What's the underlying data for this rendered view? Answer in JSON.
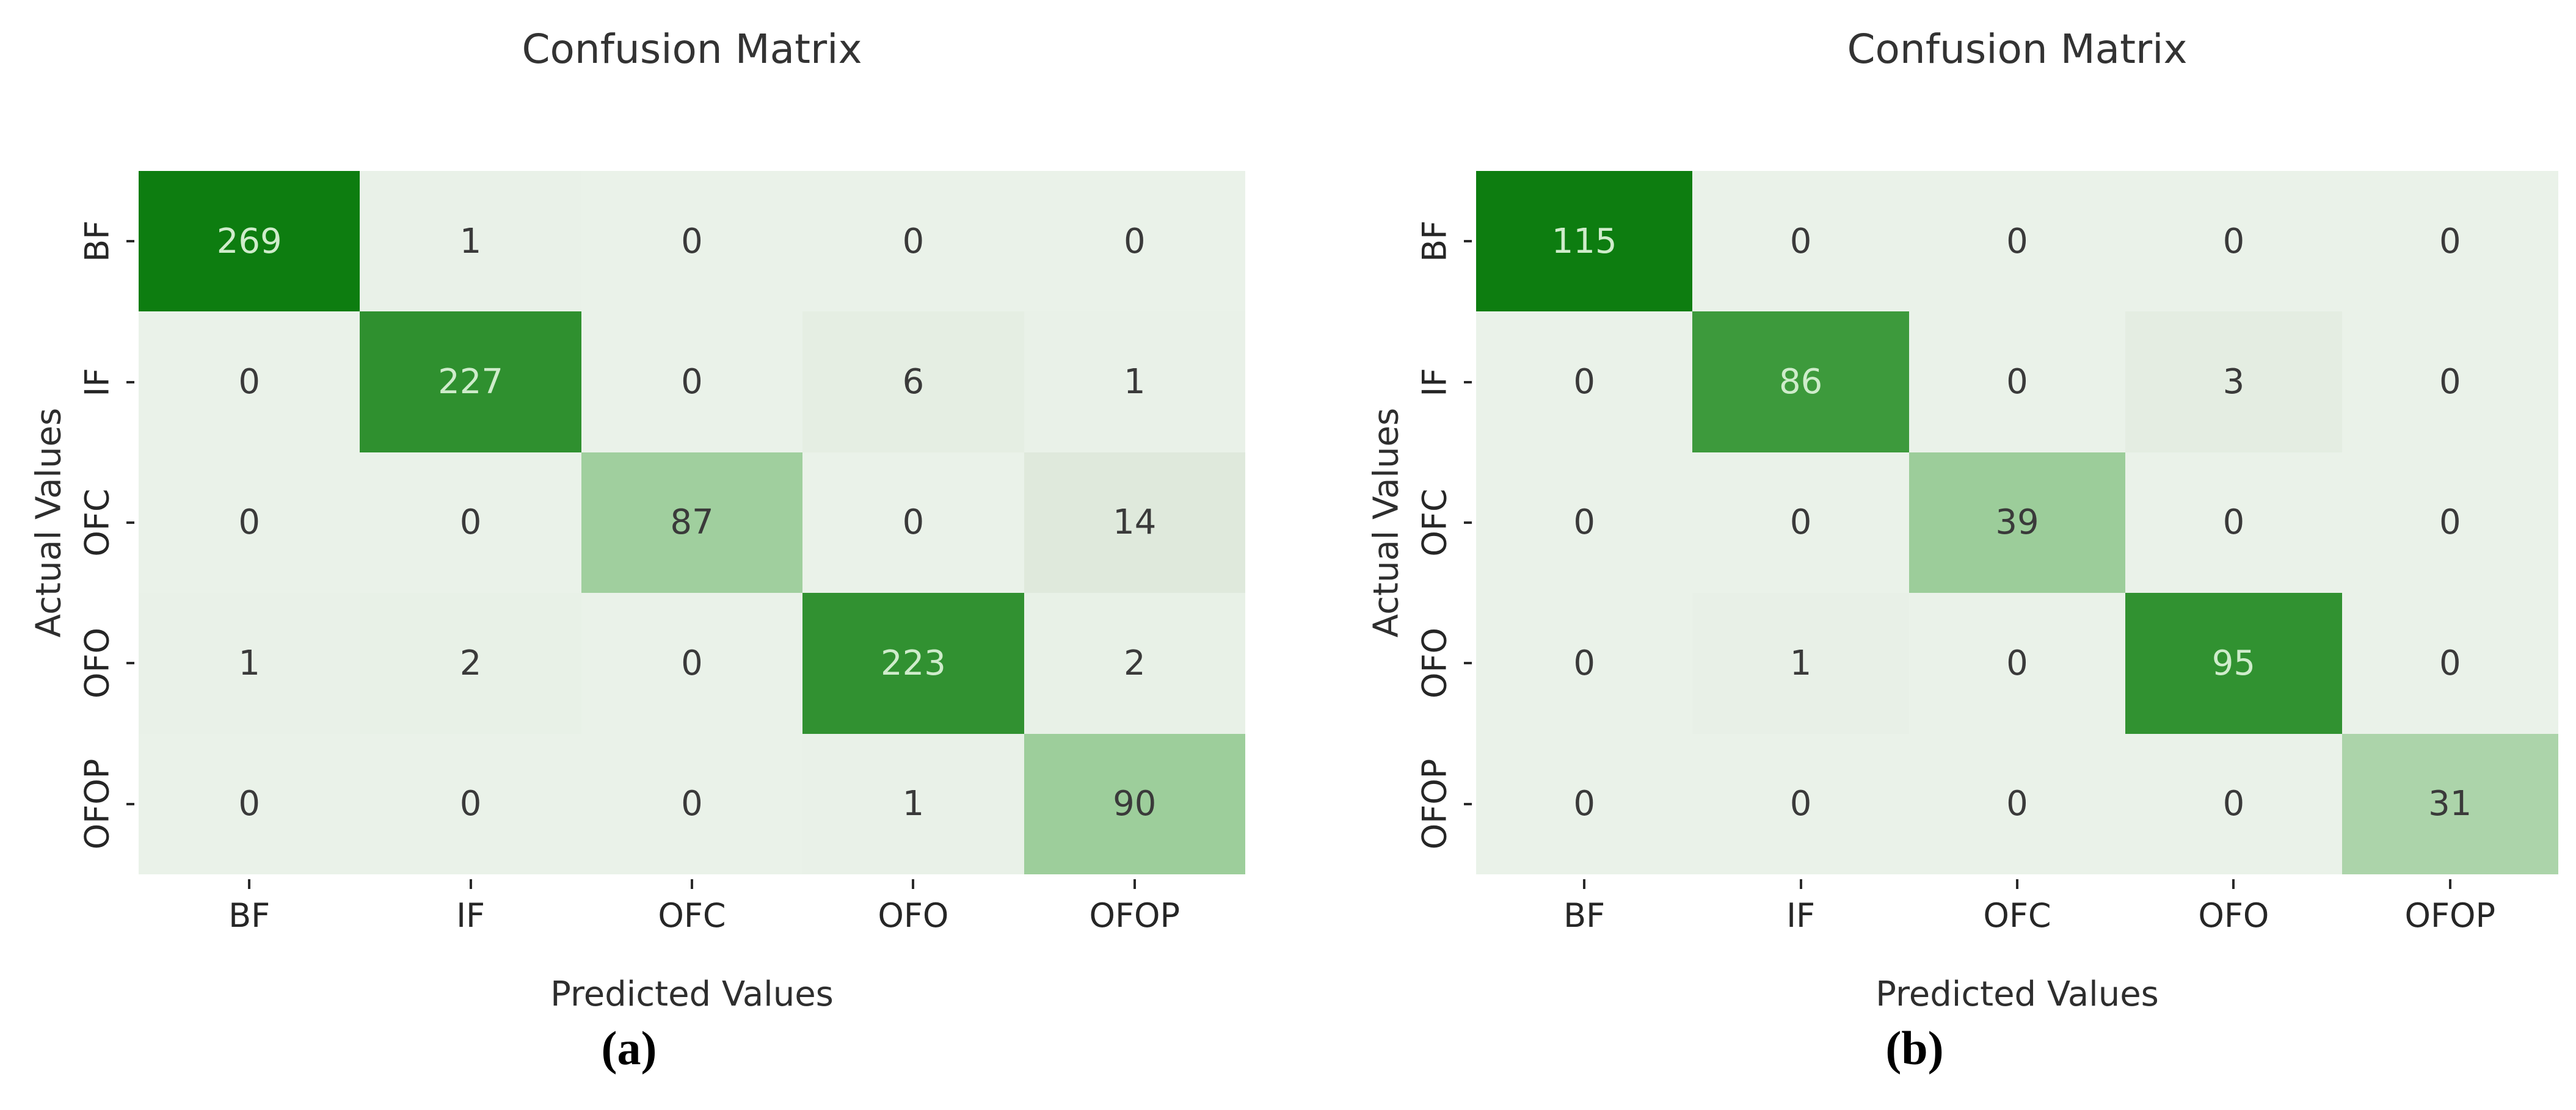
{
  "figure": {
    "description": "Two side-by-side confusion matrix heatmaps",
    "background": "#ffffff"
  },
  "colors": {
    "scale": [
      {
        "t": 0.0,
        "hex": "#eaf2e9"
      },
      {
        "t": 0.05,
        "hex": "#dfe9dc"
      },
      {
        "t": 0.34,
        "hex": "#9ccd9a"
      },
      {
        "t": 0.75,
        "hex": "#3c9a3c"
      },
      {
        "t": 0.85,
        "hex": "#2e8f2e"
      },
      {
        "t": 1.0,
        "hex": "#0d7d10"
      }
    ],
    "cell_text_light": "#cfeccb",
    "cell_text_dark": "#3a3a3a",
    "tick_text": "#262626",
    "title_text": "#333333"
  },
  "chart_data": [
    {
      "type": "heatmap",
      "title": "Confusion Matrix",
      "xlabel": "Predicted Values",
      "ylabel": "Actual Values",
      "caption": "(a)",
      "categories": [
        "BF",
        "IF",
        "OFC",
        "OFO",
        "OFOP"
      ],
      "rows": [
        "BF",
        "IF",
        "OFC",
        "OFO",
        "OFOP"
      ],
      "matrix": [
        [
          269,
          1,
          0,
          0,
          0
        ],
        [
          0,
          227,
          0,
          6,
          1
        ],
        [
          0,
          0,
          87,
          0,
          14
        ],
        [
          1,
          2,
          0,
          223,
          2
        ],
        [
          0,
          0,
          0,
          1,
          90
        ]
      ],
      "vmin": 0,
      "vmax": 269,
      "colormap": "Greens",
      "legend": "none",
      "grid": false
    },
    {
      "type": "heatmap",
      "title": "Confusion Matrix",
      "xlabel": "Predicted Values",
      "ylabel": "Actual Values",
      "caption": "(b)",
      "categories": [
        "BF",
        "IF",
        "OFC",
        "OFO",
        "OFOP"
      ],
      "rows": [
        "BF",
        "IF",
        "OFC",
        "OFO",
        "OFOP"
      ],
      "matrix": [
        [
          115,
          0,
          0,
          0,
          0
        ],
        [
          0,
          86,
          0,
          3,
          0
        ],
        [
          0,
          0,
          39,
          0,
          0
        ],
        [
          0,
          1,
          0,
          95,
          0
        ],
        [
          0,
          0,
          0,
          0,
          31
        ]
      ],
      "vmin": 0,
      "vmax": 115,
      "colormap": "Greens",
      "legend": "none",
      "grid": false
    }
  ]
}
